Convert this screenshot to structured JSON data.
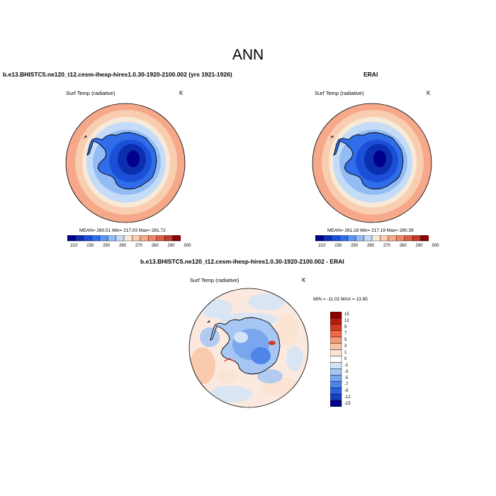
{
  "title": "ANN",
  "panels": [
    {
      "title": "b.e13.BHISTC5.ne120_t12.cesm-ihesp-hires1.0.30-1920-2100.002 (yrs 1921-1926)",
      "variable": "Surf Temp (radiative)",
      "units": "K",
      "stats": "MEAN= 260.51  Min= 217.03  Max= 281.72",
      "colorbar_ticks": [
        "210",
        "230",
        "250",
        "260",
        "270",
        "280",
        "290",
        "300"
      ]
    },
    {
      "title": "ERAI",
      "variable": "Surf Temp (radiative)",
      "units": "K",
      "stats": "MEAN= 261.18  Min= 217.19  Max= 280.39",
      "colorbar_ticks": [
        "210",
        "230",
        "250",
        "260",
        "270",
        "280",
        "290",
        "300"
      ]
    },
    {
      "title": "b.e13.BHISTC5.ne120_t12.cesm-ihesp-hires1.0.30-1920-2100.002 - ERAI",
      "variable": "Surf Temp (radiative)",
      "units": "K",
      "stats": "MIN = -11.02 MAX =  13.85",
      "colorbar_ticks": [
        "15",
        "12",
        "9",
        "7",
        "5",
        "3",
        "1",
        "0",
        "-1",
        "-3",
        "-5",
        "-7",
        "-9",
        "-12",
        "-15"
      ]
    }
  ],
  "colors": {
    "abs_scale": [
      "#00008b",
      "#0c2fb0",
      "#1b4fd8",
      "#2f6ee8",
      "#5b93f0",
      "#93bcf5",
      "#c4dcf7",
      "#f7ead8",
      "#f9cdb0",
      "#f5a88a",
      "#ee8566",
      "#dd5f45",
      "#c23a2a",
      "#8b0000"
    ],
    "diff_scale": [
      "#8b0000",
      "#b81a10",
      "#d63a22",
      "#ea6a48",
      "#f39a78",
      "#f8c4a6",
      "#fbe3d2",
      "#ffffff",
      "#d3e4f8",
      "#a6c6f3",
      "#7aa6ee",
      "#4f84e8",
      "#2e62dc",
      "#173fbf",
      "#00008b"
    ]
  }
}
